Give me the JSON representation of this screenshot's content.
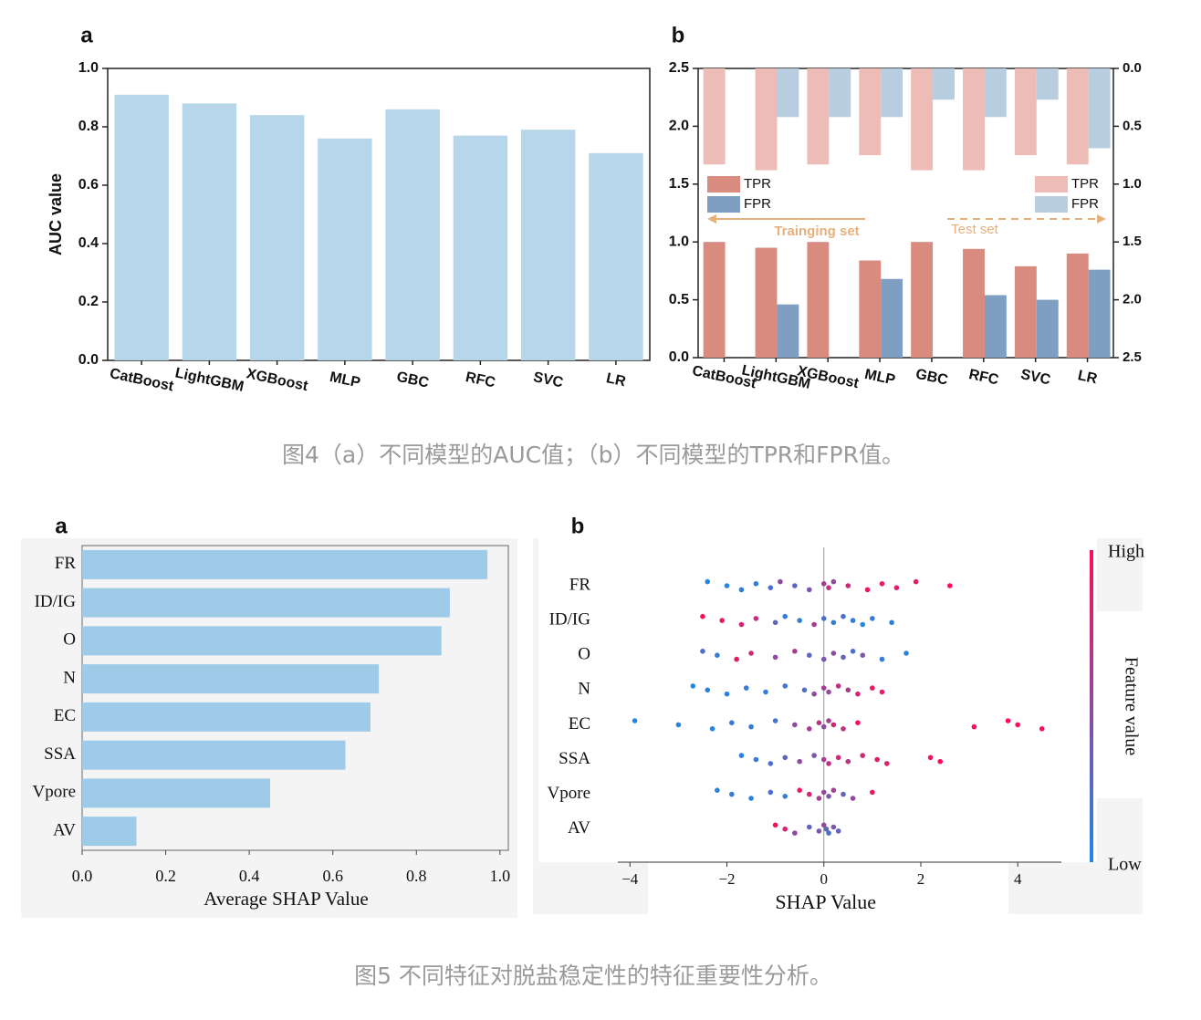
{
  "chart_data": [
    {
      "type": "bar",
      "panel": "a",
      "ylabel": "AUC value",
      "categories": [
        "CatBoost",
        "LightGBM",
        "XGBoost",
        "MLP",
        "GBC",
        "RFC",
        "SVC",
        "LR"
      ],
      "values": [
        0.91,
        0.88,
        0.84,
        0.76,
        0.86,
        0.77,
        0.79,
        0.71
      ],
      "color": "#b6d6e9",
      "ylim": [
        0,
        1
      ],
      "yticks": [
        {
          "value": 0,
          "label": "0.0"
        },
        0.2,
        0.4,
        0.6,
        0.8,
        {
          "value": 1,
          "label": "1.0"
        }
      ]
    },
    {
      "type": "bar",
      "panel": "b",
      "categories": [
        "CatBoost",
        "LightGBM",
        "XGBoost",
        "MLP",
        "GBC",
        "RFC",
        "SVC",
        "LR"
      ],
      "series": [
        {
          "name": "TPR",
          "color": "#d98b80",
          "legend": "left",
          "values": [
            1.0,
            0.95,
            1.0,
            0.84,
            1.0,
            0.94,
            0.79,
            0.9
          ]
        },
        {
          "name": "FPR",
          "color": "#7f9fc2",
          "legend": "left",
          "values": [
            0,
            0.46,
            0,
            0.68,
            0,
            0.54,
            0.5,
            0.76
          ]
        },
        {
          "name": "TPR",
          "color": "#edbcb7",
          "legend": "right",
          "axis": "y2",
          "values": [
            0.83,
            0.88,
            0.83,
            0.75,
            0.88,
            0.88,
            0.75,
            0.83
          ]
        },
        {
          "name": "FPR",
          "color": "#b8cde0",
          "legend": "right",
          "axis": "y2",
          "values": [
            0,
            0.42,
            0.42,
            0.42,
            0.27,
            0.42,
            0.27,
            0.69
          ]
        }
      ],
      "annotations": [
        "Trainging set",
        "Test set"
      ],
      "annotation_color": "#e6b07c",
      "ylim": [
        0,
        2.5
      ],
      "yticks": [
        {
          "value": 0,
          "label": "0.0"
        },
        0.5,
        {
          "value": 1,
          "label": "1.0"
        },
        1.5,
        {
          "value": 2,
          "label": "2.0"
        },
        2.5
      ],
      "y2lim": [
        2.5,
        0
      ],
      "y2ticks": [
        {
          "value": 0,
          "label": "0.0"
        },
        0.5,
        {
          "value": 1,
          "label": "1.0"
        },
        1.5,
        {
          "value": 2,
          "label": "2.0"
        },
        2.5
      ]
    },
    {
      "type": "barh",
      "panel": "a",
      "xlabel": "Average SHAP Value",
      "categories": [
        "FR",
        "ID/IG",
        "O",
        "N",
        "EC",
        "SSA",
        "Vpore",
        "AV"
      ],
      "values": [
        0.97,
        0.88,
        0.86,
        0.71,
        0.69,
        0.63,
        0.45,
        0.13
      ],
      "color": "#9dcbe8",
      "xlim": [
        0,
        1.02
      ],
      "xticks": [
        {
          "value": 0,
          "label": "0.0"
        },
        0.2,
        0.4,
        0.6,
        0.8,
        {
          "value": 1,
          "label": "1.0"
        }
      ]
    },
    {
      "type": "beeswarm",
      "panel": "b",
      "xlabel": "SHAP Value",
      "colorbar": {
        "high": "High",
        "low": "Low",
        "label": "Feature value"
      },
      "colormap": [
        "#1e88e5",
        "#ff0d57"
      ],
      "xlim": [
        -4.25,
        4.9
      ],
      "xticks": [
        {
          "value": -4,
          "label": "−4"
        },
        {
          "value": -2,
          "label": "−2"
        },
        0,
        2,
        4
      ],
      "series": [
        {
          "name": "FR",
          "values": [
            -2.4,
            -2.0,
            -1.7,
            -1.4,
            -1.1,
            -0.9,
            -0.6,
            -0.3,
            0,
            0.1,
            0.2,
            0.5,
            0.9,
            1.2,
            1.5,
            1.9,
            2.6
          ],
          "feature_values": [
            0,
            0.05,
            0.1,
            0.1,
            0.2,
            0.5,
            0.3,
            0.4,
            0.6,
            0.7,
            0.5,
            0.8,
            0.9,
            0.9,
            0.85,
            0.9,
            1
          ]
        },
        {
          "name": "ID/IG",
          "values": [
            -2.5,
            -2.1,
            -1.7,
            -1.4,
            -1.0,
            -0.8,
            -0.5,
            -0.2,
            0,
            0.2,
            0.4,
            0.6,
            0.8,
            1.0,
            1.4
          ],
          "feature_values": [
            1,
            0.9,
            0.8,
            0.7,
            0.3,
            0.1,
            0.1,
            0.6,
            0.2,
            0.1,
            0.2,
            0.1,
            0,
            0.1,
            0.05
          ]
        },
        {
          "name": "O",
          "values": [
            -2.5,
            -2.2,
            -1.8,
            -1.5,
            -1.0,
            -0.6,
            -0.3,
            0,
            0.2,
            0.4,
            0.6,
            0.8,
            1.2,
            1.7
          ],
          "feature_values": [
            0.2,
            0.1,
            0.9,
            0.8,
            0.5,
            0.6,
            0.3,
            0.4,
            0.5,
            0.3,
            0.2,
            0.4,
            0.1,
            0.05
          ]
        },
        {
          "name": "N",
          "values": [
            -2.7,
            -2.4,
            -2.0,
            -1.6,
            -1.2,
            -0.8,
            -0.4,
            -0.2,
            0,
            0.1,
            0.3,
            0.5,
            0.7,
            1.0,
            1.2
          ],
          "feature_values": [
            0,
            0.05,
            0.05,
            0.1,
            0.1,
            0.15,
            0.2,
            0.5,
            0.6,
            0.5,
            0.7,
            0.6,
            0.8,
            0.9,
            0.85
          ]
        },
        {
          "name": "EC",
          "values": [
            -3.9,
            -3.0,
            -2.3,
            -1.9,
            -1.5,
            -1.0,
            -0.6,
            -0.3,
            -0.1,
            0,
            0.1,
            0.2,
            0.4,
            0.7,
            3.1,
            3.8,
            4.0,
            4.5
          ],
          "feature_values": [
            0,
            0.05,
            0.05,
            0.1,
            0.1,
            0.15,
            0.5,
            0.6,
            0.7,
            0.5,
            0.6,
            0.8,
            0.7,
            1,
            1,
            1,
            1,
            1
          ]
        },
        {
          "name": "SSA",
          "values": [
            -1.7,
            -1.4,
            -1.1,
            -0.8,
            -0.5,
            -0.2,
            0,
            0.1,
            0.3,
            0.5,
            0.8,
            1.1,
            1.3,
            2.2,
            2.4
          ],
          "feature_values": [
            0.05,
            0.1,
            0.2,
            0.3,
            0.5,
            0.4,
            0.6,
            0.7,
            0.8,
            0.7,
            0.8,
            0.9,
            0.85,
            1,
            1
          ]
        },
        {
          "name": "Vpore",
          "values": [
            -2.2,
            -1.9,
            -1.5,
            -1.1,
            -0.8,
            -0.5,
            -0.3,
            -0.1,
            0,
            0.1,
            0.2,
            0.4,
            0.6,
            1.0
          ],
          "feature_values": [
            0.05,
            0.1,
            0.05,
            0.2,
            0.1,
            0.9,
            0.8,
            0.6,
            0.5,
            0.4,
            0.6,
            0.3,
            0.5,
            0.9
          ]
        },
        {
          "name": "AV",
          "values": [
            -1.0,
            -0.8,
            -0.6,
            -0.3,
            -0.1,
            0,
            0.05,
            0.1,
            0.2,
            0.3
          ],
          "feature_values": [
            1,
            0.8,
            0.5,
            0.3,
            0.4,
            0.5,
            0.3,
            0.2,
            0.4,
            0.3
          ]
        }
      ]
    }
  ],
  "captions": [
    "图4（a）不同模型的AUC值；（b）不同模型的TPR和FPR值。",
    "图5 不同特征对脱盐稳定性的特征重要性分析。"
  ]
}
